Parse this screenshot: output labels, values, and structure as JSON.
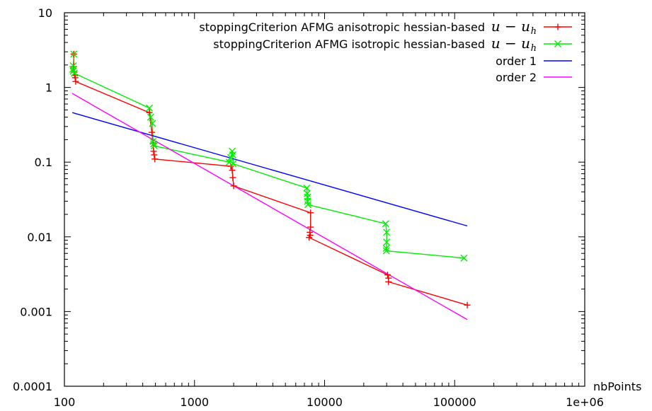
{
  "chart_data": {
    "type": "line",
    "title": "",
    "xlabel": "nbPoints",
    "ylabel": "",
    "xscale": "log",
    "yscale": "log",
    "xlim": [
      100,
      1000000
    ],
    "ylim": [
      0.0001,
      10
    ],
    "x_tick_labels": [
      "100",
      "1000",
      "10000",
      "100000",
      "1e+06"
    ],
    "y_tick_labels": [
      "0.0001",
      "0.001",
      "0.01",
      "0.1",
      "1",
      "10"
    ],
    "grid": false,
    "legend_position": "top-right",
    "series": [
      {
        "name": "stoppingCriterion AFMG anisotropic hessian-based",
        "math_main": "u − u",
        "math_sub": "h",
        "color": "#ff0000",
        "marker": "plus",
        "points": [
          [
            118,
            2.8
          ],
          [
            118,
            1.9
          ],
          [
            119,
            1.6
          ],
          [
            120,
            1.45
          ],
          [
            121,
            1.35
          ],
          [
            122,
            1.2
          ],
          [
            450,
            0.46
          ],
          [
            470,
            0.25
          ],
          [
            480,
            0.18
          ],
          [
            485,
            0.14
          ],
          [
            490,
            0.125
          ],
          [
            495,
            0.11
          ],
          [
            1900,
            0.088
          ],
          [
            1950,
            0.078
          ],
          [
            1970,
            0.062
          ],
          [
            2000,
            0.048
          ],
          [
            7800,
            0.021
          ],
          [
            7800,
            0.0135
          ],
          [
            7700,
            0.0115
          ],
          [
            7750,
            0.0105
          ],
          [
            7600,
            0.0098
          ],
          [
            30500,
            0.0031
          ],
          [
            31000,
            0.0028
          ],
          [
            31000,
            0.0025
          ],
          [
            125000,
            0.00122
          ]
        ]
      },
      {
        "name": "stoppingCriterion AFMG isotropic hessian-based",
        "math_main": "u − u",
        "math_sub": "h",
        "color": "#00ee00",
        "marker": "cross",
        "points": [
          [
            118,
            2.8
          ],
          [
            117,
            1.95
          ],
          [
            116,
            1.75
          ],
          [
            117,
            1.65
          ],
          [
            119,
            1.55
          ],
          [
            450,
            0.53
          ],
          [
            460,
            0.4
          ],
          [
            475,
            0.33
          ],
          [
            480,
            0.19
          ],
          [
            485,
            0.175
          ],
          [
            490,
            0.165
          ],
          [
            1850,
            0.1
          ],
          [
            1900,
            0.115
          ],
          [
            1950,
            0.14
          ],
          [
            1970,
            0.125
          ],
          [
            1980,
            0.095
          ],
          [
            7300,
            0.045
          ],
          [
            7350,
            0.038
          ],
          [
            7400,
            0.034
          ],
          [
            7400,
            0.03
          ],
          [
            7450,
            0.027
          ],
          [
            29500,
            0.015
          ],
          [
            30000,
            0.0115
          ],
          [
            30000,
            0.0085
          ],
          [
            29800,
            0.007
          ],
          [
            29800,
            0.0065
          ],
          [
            118000,
            0.0052
          ]
        ]
      },
      {
        "name": "order 1",
        "color": "#0000ff",
        "marker": "none",
        "points": [
          [
            115,
            0.46
          ],
          [
            125000,
            0.014
          ]
        ]
      },
      {
        "name": "order 2",
        "color": "#ff00ff",
        "marker": "none",
        "points": [
          [
            115,
            0.83
          ],
          [
            125000,
            0.00078
          ]
        ]
      }
    ]
  }
}
